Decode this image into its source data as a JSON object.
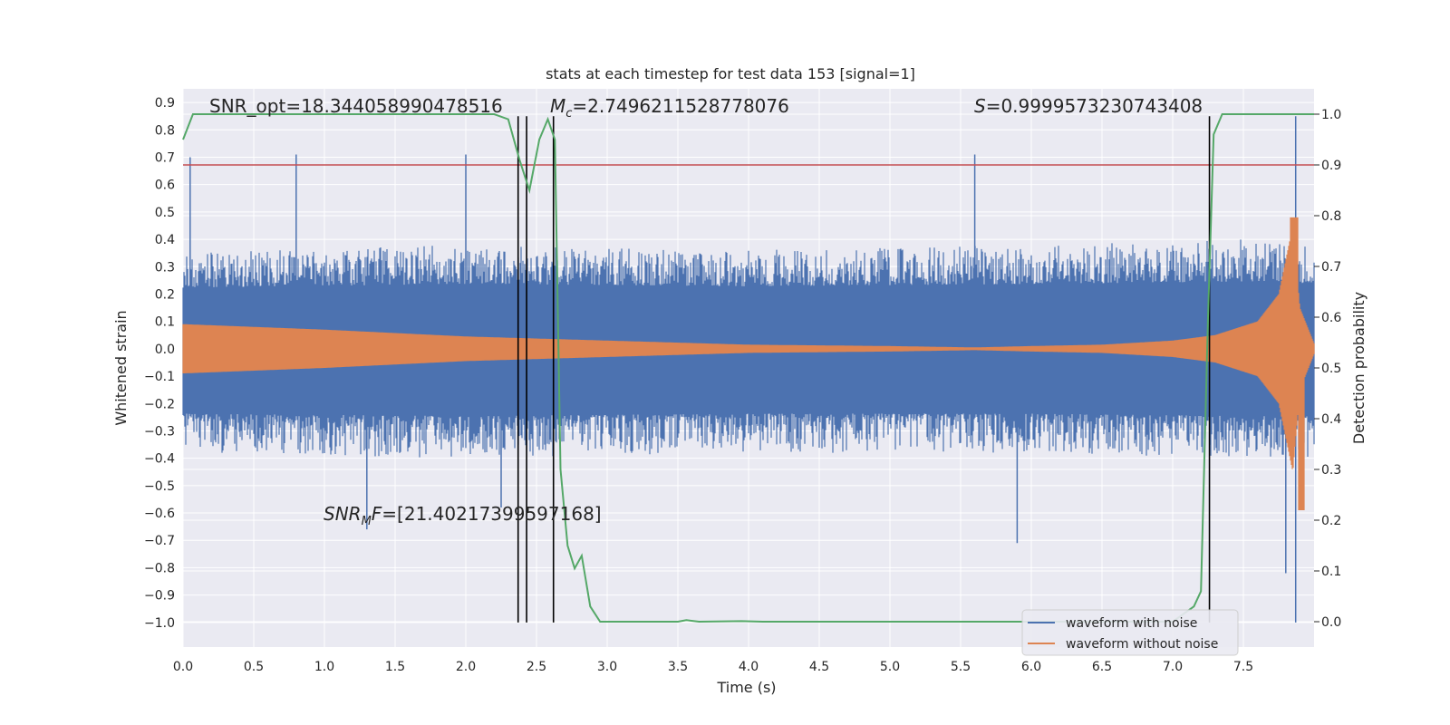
{
  "chart_data": {
    "type": "line",
    "title": "stats at each timestep for test data 153 [signal=1]",
    "xlabel": "Time (s)",
    "ylabel_left": "Whitened strain",
    "ylabel_right": "Detection probability",
    "xlim": [
      0.0,
      8.0
    ],
    "ylim_left": [
      -1.09,
      0.95
    ],
    "ylim_right": [
      -0.05,
      1.05
    ],
    "x_ticks": [
      0.0,
      0.5,
      1.0,
      1.5,
      2.0,
      2.5,
      3.0,
      3.5,
      4.0,
      4.5,
      5.0,
      5.5,
      6.0,
      6.5,
      7.0,
      7.5
    ],
    "x_tick_labels": [
      "0.0",
      "0.5",
      "1.0",
      "1.5",
      "2.0",
      "2.5",
      "3.0",
      "3.5",
      "4.0",
      "4.5",
      "5.0",
      "5.5",
      "6.0",
      "6.5",
      "7.0",
      "7.5"
    ],
    "y_left_ticks": [
      0.9,
      0.8,
      0.7,
      0.6,
      0.5,
      0.4,
      0.3,
      0.2,
      0.1,
      0.0,
      -0.1,
      -0.2,
      -0.3,
      -0.4,
      -0.5,
      -0.6,
      -0.7,
      -0.8,
      -0.9,
      -1.0
    ],
    "y_left_tick_labels": [
      "0.9",
      "0.8",
      "0.7",
      "0.6",
      "0.5",
      "0.4",
      "0.3",
      "0.2",
      "0.1",
      "0.0",
      "−0.1",
      "−0.2",
      "−0.3",
      "−0.4",
      "−0.5",
      "−0.6",
      "−0.7",
      "−0.8",
      "−0.9",
      "−1.0"
    ],
    "y_right_ticks": [
      1.0,
      0.9,
      0.8,
      0.7,
      0.6,
      0.5,
      0.4,
      0.3,
      0.2,
      0.1,
      0.0
    ],
    "y_right_tick_labels": [
      "1.0",
      "0.9",
      "0.8",
      "0.7",
      "0.6",
      "0.5",
      "0.4",
      "0.3",
      "0.2",
      "0.1",
      "0.0"
    ],
    "series": [
      {
        "name": "waveform with noise",
        "color": "#4c72b0",
        "axis": "left",
        "kind": "noise_band",
        "upper_envelope": [
          [
            0.0,
            0.35
          ],
          [
            2.0,
            0.38
          ],
          [
            4.0,
            0.36
          ],
          [
            6.0,
            0.38
          ],
          [
            7.5,
            0.4
          ],
          [
            8.0,
            0.38
          ]
        ],
        "lower_envelope": [
          [
            0.0,
            -0.38
          ],
          [
            2.0,
            -0.4
          ],
          [
            4.0,
            -0.38
          ],
          [
            6.0,
            -0.38
          ],
          [
            7.5,
            -0.4
          ],
          [
            8.0,
            -0.4
          ]
        ],
        "peaks": [
          [
            0.05,
            0.7
          ],
          [
            0.8,
            0.71
          ],
          [
            2.0,
            0.71
          ],
          [
            5.6,
            0.71
          ],
          [
            7.87,
            0.85
          ],
          [
            7.87,
            -1.0
          ],
          [
            7.8,
            -0.82
          ],
          [
            5.9,
            -0.71
          ],
          [
            1.3,
            -0.66
          ],
          [
            2.25,
            -0.58
          ]
        ]
      },
      {
        "name": "waveform without noise",
        "color": "#dd8452",
        "axis": "left",
        "kind": "chirp",
        "amplitude_envelope": [
          [
            0.0,
            0.09
          ],
          [
            1.0,
            0.07
          ],
          [
            2.0,
            0.045
          ],
          [
            3.0,
            0.03
          ],
          [
            4.0,
            0.015
          ],
          [
            5.0,
            0.01
          ],
          [
            5.6,
            0.005
          ],
          [
            6.0,
            0.01
          ],
          [
            6.5,
            0.015
          ],
          [
            7.0,
            0.03
          ],
          [
            7.3,
            0.05
          ],
          [
            7.6,
            0.1
          ],
          [
            7.75,
            0.2
          ],
          [
            7.85,
            0.45
          ],
          [
            7.9,
            0.15
          ],
          [
            8.0,
            0.02
          ]
        ],
        "min": -0.59,
        "max": 0.48
      },
      {
        "name": "detection probability",
        "color": "#55a868",
        "axis": "right",
        "points": [
          [
            0.0,
            0.95
          ],
          [
            0.07,
            1.0
          ],
          [
            2.2,
            1.0
          ],
          [
            2.3,
            0.99
          ],
          [
            2.38,
            0.91
          ],
          [
            2.45,
            0.85
          ],
          [
            2.52,
            0.95
          ],
          [
            2.58,
            0.99
          ],
          [
            2.63,
            0.95
          ],
          [
            2.67,
            0.3
          ],
          [
            2.72,
            0.15
          ],
          [
            2.77,
            0.105
          ],
          [
            2.82,
            0.13
          ],
          [
            2.88,
            0.03
          ],
          [
            2.95,
            0.0
          ],
          [
            3.5,
            0.0
          ],
          [
            3.56,
            0.003
          ],
          [
            3.65,
            0.0
          ],
          [
            3.95,
            0.001
          ],
          [
            4.1,
            0.0
          ],
          [
            7.0,
            0.0
          ],
          [
            7.15,
            0.03
          ],
          [
            7.2,
            0.06
          ],
          [
            7.25,
            0.6
          ],
          [
            7.29,
            0.96
          ],
          [
            7.35,
            1.0
          ],
          [
            8.0,
            1.0
          ]
        ]
      }
    ],
    "threshold": {
      "value": 0.9,
      "axis": "right",
      "color": "#c44e52"
    },
    "vertical_markers": [
      2.37,
      2.43,
      2.62,
      7.26
    ],
    "vertical_marker_range": [
      -1.0,
      0.85
    ],
    "annotations": {
      "snr_opt": "SNR_opt=18.344058990478516",
      "mc_symbol": "M",
      "mc_sub": "c",
      "mc_value": "=2.7496211528778076",
      "s_symbol": "S",
      "s_value": "=0.9999573230743408",
      "snr_mf_symbol": "SNR",
      "snr_mf_sub": "M",
      "snr_mf_mid": "F",
      "snr_mf_value": "=[21.40217399597168]"
    },
    "legend": {
      "position": "lower-right",
      "entries": [
        "waveform with noise",
        "waveform without noise"
      ]
    },
    "grid": true,
    "background": "#eaeaf2"
  }
}
